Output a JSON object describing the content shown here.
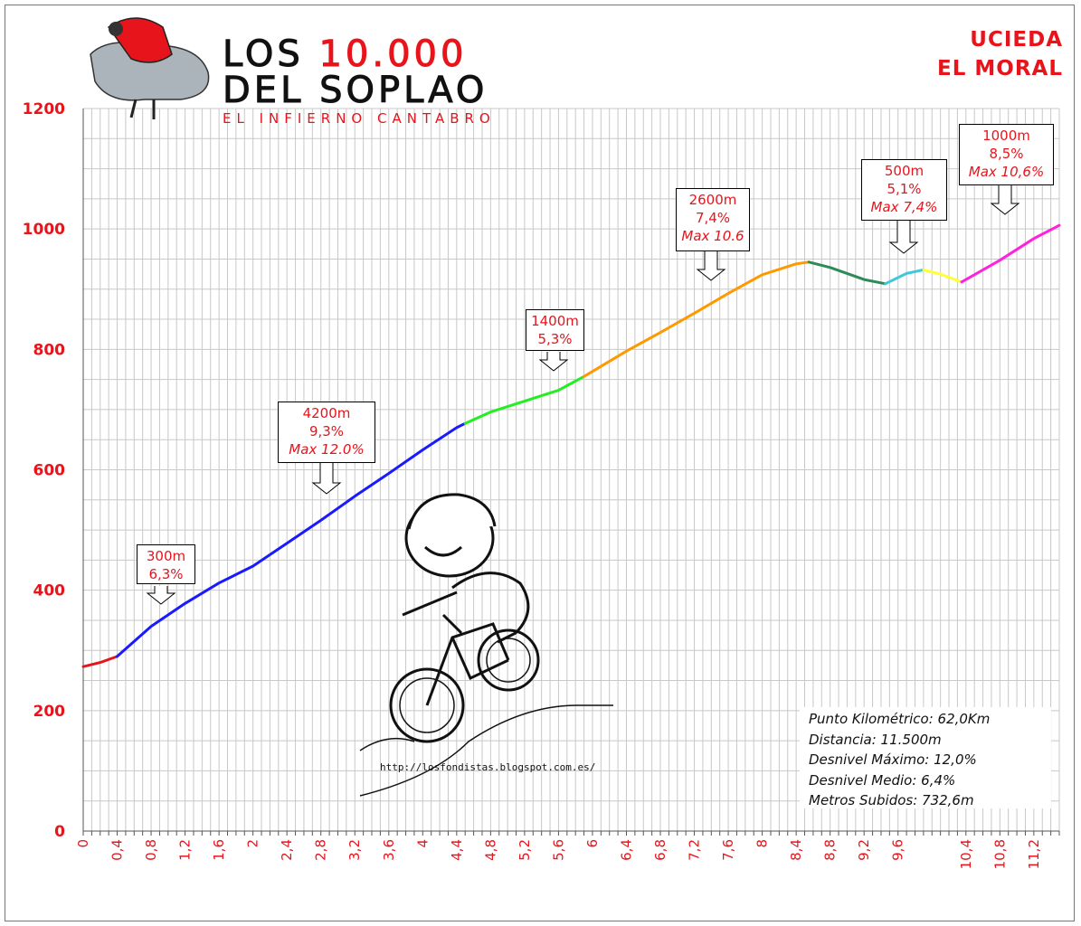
{
  "header": {
    "logo_line1_a": "LOS ",
    "logo_line1_b": "10.000",
    "logo_line2": "DEL SOPLAO",
    "logo_line3": "EL INFIERNO CANTABRO",
    "title_line1": "UCIEDA",
    "title_line2": "EL MORAL"
  },
  "stats": {
    "punto": "Punto Kilométrico: 62,0Km",
    "distancia": "Distancia: 11.500m",
    "desnivel_max": "Desnivel Máximo: 12,0%",
    "desnivel_medio": "Desnivel Medio: 6,4%",
    "metros": "Metros Subidos: 732,6m"
  },
  "url": "http://losfondistas.blogspot.com.es/",
  "callouts": [
    {
      "lines": [
        "300m",
        "6,3%"
      ],
      "max": ""
    },
    {
      "lines": [
        "4200m",
        "9,3%"
      ],
      "max": "Max 12.0%"
    },
    {
      "lines": [
        "1400m",
        "5,3%"
      ],
      "max": ""
    },
    {
      "lines": [
        "2600m",
        "7,4%"
      ],
      "max": "Max 10.6"
    },
    {
      "lines": [
        "500m",
        "5,1%"
      ],
      "max": "Max 7,4%"
    },
    {
      "lines": [
        "1000m",
        "8,5%"
      ],
      "max": "Max 10,6%"
    }
  ],
  "chart_data": {
    "type": "line",
    "xlabel": "",
    "ylabel": "",
    "ylim": [
      0,
      1200
    ],
    "yticks": [
      "0",
      "200",
      "400",
      "600",
      "800",
      "1000",
      "1200"
    ],
    "xlim": [
      0,
      11.5
    ],
    "xticks": [
      "0",
      "0,4",
      "0,8",
      "1,2",
      "1,6",
      "2",
      "2,4",
      "2,8",
      "3,2",
      "3,6",
      "4",
      "4,4",
      "4,8",
      "5,2",
      "5,6",
      "6",
      "6,4",
      "6,8",
      "7,2",
      "7,6",
      "8",
      "8,4",
      "8,8",
      "9,2",
      "9,6",
      "10,4",
      "10,8",
      "11,2"
    ],
    "xtick_values": [
      0,
      0.4,
      0.8,
      1.2,
      1.6,
      2,
      2.4,
      2.8,
      3.2,
      3.6,
      4,
      4.4,
      4.8,
      5.2,
      5.6,
      6,
      6.4,
      6.8,
      7.2,
      7.6,
      8,
      8.4,
      8.8,
      9.2,
      9.6,
      10.4,
      10.8,
      11.2
    ],
    "grid": true,
    "segments": [
      {
        "color": "#e8141b",
        "points": [
          [
            0,
            273
          ],
          [
            0.2,
            280
          ],
          [
            0.4,
            290
          ]
        ]
      },
      {
        "color": "#1a1aff",
        "points": [
          [
            0.4,
            290
          ],
          [
            0.8,
            340
          ],
          [
            1.2,
            378
          ],
          [
            1.6,
            412
          ],
          [
            2,
            440
          ],
          [
            2.4,
            478
          ],
          [
            2.8,
            516
          ],
          [
            3.2,
            556
          ],
          [
            3.6,
            594
          ],
          [
            4,
            633
          ],
          [
            4.4,
            670
          ],
          [
            4.5,
            677
          ]
        ]
      },
      {
        "color": "#22ee22",
        "points": [
          [
            4.5,
            677
          ],
          [
            4.8,
            696
          ],
          [
            5.2,
            714
          ],
          [
            5.6,
            732
          ],
          [
            5.9,
            755
          ]
        ]
      },
      {
        "color": "#ff9900",
        "points": [
          [
            5.9,
            755
          ],
          [
            6.4,
            797
          ],
          [
            6.8,
            828
          ],
          [
            7.2,
            860
          ],
          [
            7.6,
            893
          ],
          [
            8,
            924
          ],
          [
            8.4,
            942
          ],
          [
            8.55,
            945
          ]
        ]
      },
      {
        "color": "#2e8b57",
        "points": [
          [
            8.55,
            945
          ],
          [
            8.8,
            936
          ],
          [
            9.2,
            916
          ],
          [
            9.45,
            909
          ]
        ]
      },
      {
        "color": "#40c8d8",
        "points": [
          [
            9.45,
            909
          ],
          [
            9.7,
            926
          ],
          [
            9.9,
            932
          ]
        ]
      },
      {
        "color": "#ffff33",
        "points": [
          [
            9.9,
            932
          ],
          [
            10.1,
            925
          ],
          [
            10.35,
            912
          ]
        ]
      },
      {
        "color": "#ff22dd",
        "points": [
          [
            10.35,
            912
          ],
          [
            10.8,
            948
          ],
          [
            11.2,
            984
          ],
          [
            11.5,
            1006
          ]
        ]
      }
    ]
  }
}
